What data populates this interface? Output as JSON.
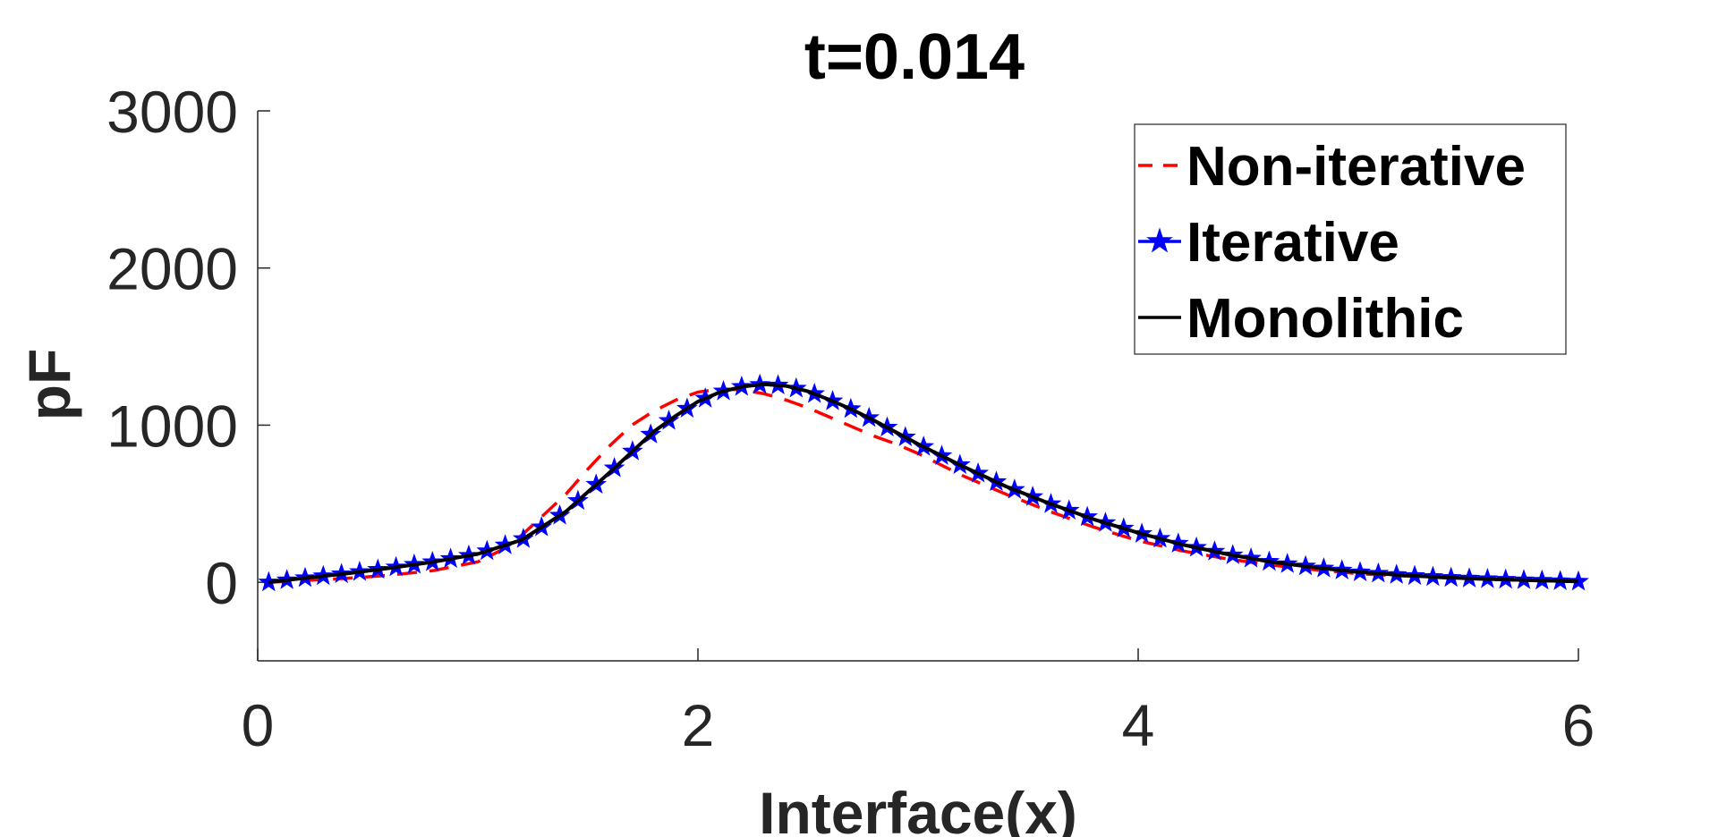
{
  "chart_data": {
    "type": "line",
    "title": "t=0.014",
    "xlabel": "Interface(x)",
    "ylabel": "pF",
    "xlim": [
      0,
      6
    ],
    "ylim": [
      -500,
      3000
    ],
    "xticks": [
      0,
      2,
      4,
      6
    ],
    "yticks": [
      0,
      1000,
      2000,
      3000
    ],
    "xtick_labels": [
      "0",
      "2",
      "4",
      "6"
    ],
    "ytick_labels": [
      "0",
      "1000",
      "2000",
      "3000"
    ],
    "grid": false,
    "legend_position": "top-right",
    "series": [
      {
        "name": "Non-iterative",
        "color": "#ff0000",
        "style": "dashed",
        "marker": "none",
        "x": [
          0.05,
          0.2,
          0.4,
          0.6,
          0.8,
          1.0,
          1.1,
          1.2,
          1.3,
          1.4,
          1.5,
          1.6,
          1.7,
          1.8,
          1.9,
          2.0,
          2.1,
          2.2,
          2.3,
          2.4,
          2.5,
          2.6,
          2.7,
          2.8,
          2.9,
          3.0,
          3.2,
          3.4,
          3.6,
          3.8,
          4.0,
          4.2,
          4.4,
          4.6,
          4.8,
          5.0,
          5.2,
          5.4,
          5.6,
          5.8,
          6.0
        ],
        "y": [
          0,
          10,
          25,
          45,
          75,
          130,
          200,
          300,
          430,
          560,
          720,
          870,
          1000,
          1090,
          1160,
          1210,
          1230,
          1225,
          1200,
          1160,
          1110,
          1050,
          990,
          930,
          880,
          820,
          680,
          560,
          450,
          350,
          265,
          200,
          150,
          110,
          80,
          55,
          40,
          28,
          18,
          10,
          5
        ]
      },
      {
        "name": "Iterative",
        "color": "#0000ff",
        "style": "solid",
        "marker": "star",
        "x": [
          0.05,
          0.2,
          0.4,
          0.6,
          0.8,
          1.0,
          1.2,
          1.4,
          1.6,
          1.8,
          1.9,
          2.0,
          2.1,
          2.2,
          2.3,
          2.4,
          2.5,
          2.6,
          2.7,
          2.8,
          3.0,
          3.2,
          3.4,
          3.6,
          3.8,
          4.0,
          4.2,
          4.4,
          4.6,
          4.8,
          5.0,
          5.2,
          5.4,
          5.6,
          5.8,
          6.0
        ],
        "y": [
          0,
          25,
          55,
          90,
          130,
          180,
          270,
          450,
          700,
          960,
          1060,
          1150,
          1210,
          1245,
          1260,
          1250,
          1215,
          1160,
          1100,
          1030,
          880,
          740,
          610,
          500,
          400,
          315,
          240,
          180,
          130,
          95,
          65,
          45,
          30,
          20,
          12,
          5
        ]
      },
      {
        "name": "Monolithic",
        "color": "#000000",
        "style": "solid",
        "marker": "none",
        "x": [
          0.05,
          0.2,
          0.4,
          0.6,
          0.8,
          1.0,
          1.2,
          1.4,
          1.6,
          1.8,
          1.9,
          2.0,
          2.1,
          2.2,
          2.3,
          2.4,
          2.5,
          2.6,
          2.7,
          2.8,
          3.0,
          3.2,
          3.4,
          3.6,
          3.8,
          4.0,
          4.2,
          4.4,
          4.6,
          4.8,
          5.0,
          5.2,
          5.4,
          5.6,
          5.8,
          6.0
        ],
        "y": [
          0,
          25,
          55,
          90,
          130,
          180,
          270,
          450,
          700,
          960,
          1060,
          1150,
          1210,
          1245,
          1260,
          1250,
          1215,
          1160,
          1100,
          1030,
          880,
          740,
          610,
          500,
          400,
          315,
          240,
          180,
          130,
          95,
          65,
          45,
          30,
          20,
          12,
          5
        ]
      }
    ]
  }
}
